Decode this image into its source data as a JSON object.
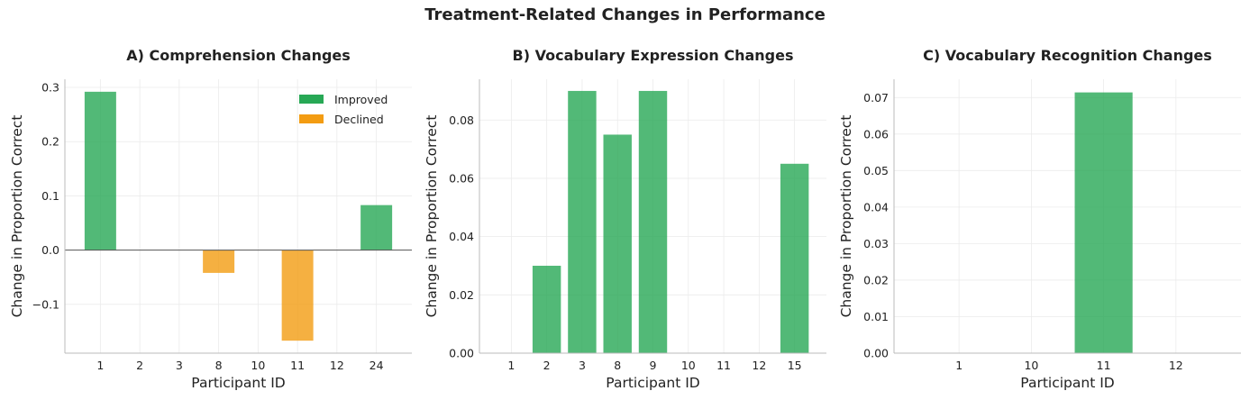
{
  "suptitle": "Treatment-Related Changes in Performance",
  "colors": {
    "improved": "#27a855",
    "declined": "#f39c12"
  },
  "legend": {
    "improved": "Improved",
    "declined": "Declined",
    "placement": "top-right (panel A only)"
  },
  "chart_data": [
    {
      "type": "bar",
      "title": "A) Comprehension Changes",
      "xlabel": "Participant ID",
      "ylabel": "Change in Proportion Correct",
      "categories": [
        "1",
        "2",
        "3",
        "8",
        "10",
        "11",
        "12",
        "24"
      ],
      "values": [
        0.292,
        0,
        0,
        -0.042,
        0,
        -0.167,
        0,
        0.083
      ],
      "ylim": [
        -0.19,
        0.315
      ],
      "yticks": [
        -0.1,
        0.0,
        0.1,
        0.2,
        0.3
      ],
      "ytick_labels": [
        "−0.1",
        "0.0",
        "0.1",
        "0.2",
        "0.3"
      ],
      "zero_line": true,
      "grid": true,
      "legend": true
    },
    {
      "type": "bar",
      "title": "B) Vocabulary Expression Changes",
      "xlabel": "Participant ID",
      "ylabel": "Change in Proportion Correct",
      "categories": [
        "1",
        "2",
        "3",
        "8",
        "9",
        "10",
        "11",
        "12",
        "15"
      ],
      "values": [
        0,
        0.03,
        0.09,
        0.075,
        0.09,
        0,
        0,
        0,
        0.065
      ],
      "ylim": [
        0,
        0.094
      ],
      "yticks": [
        0.0,
        0.02,
        0.04,
        0.06,
        0.08
      ],
      "ytick_labels": [
        "0.00",
        "0.02",
        "0.04",
        "0.06",
        "0.08"
      ],
      "zero_line": false,
      "grid": true,
      "legend": false
    },
    {
      "type": "bar",
      "title": "C) Vocabulary Recognition Changes",
      "xlabel": "Participant ID",
      "ylabel": "Change in Proportion Correct",
      "categories": [
        "1",
        "10",
        "11",
        "12"
      ],
      "values": [
        0,
        0,
        0.0714,
        0
      ],
      "ylim": [
        0,
        0.075
      ],
      "yticks": [
        0.0,
        0.01,
        0.02,
        0.03,
        0.04,
        0.05,
        0.06,
        0.07
      ],
      "ytick_labels": [
        "0.00",
        "0.01",
        "0.02",
        "0.03",
        "0.04",
        "0.05",
        "0.06",
        "0.07"
      ],
      "zero_line": false,
      "grid": true,
      "legend": false
    }
  ]
}
